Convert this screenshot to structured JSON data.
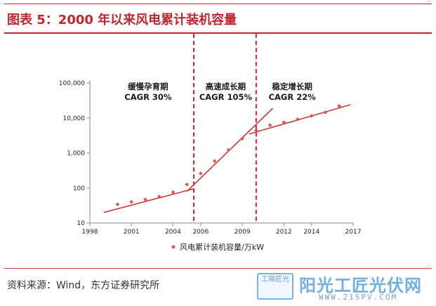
{
  "figure": {
    "title": "图表 5：2000 年以来风电累计装机容量",
    "source": "资料来源：Wind，东方证券研究所"
  },
  "watermark": {
    "seal": "工陽匠光",
    "brand": "阳光工匠光伏网",
    "url": "WWW.21SPV.COM"
  },
  "chart_data": {
    "type": "scatter",
    "title": "",
    "xlabel": "",
    "ylabel": "",
    "yscale": "log",
    "xlim": [
      1998,
      2017
    ],
    "ylim": [
      10,
      100000
    ],
    "x_ticks": [
      "1998",
      "2001",
      "2004",
      "2006",
      "2009",
      "2012",
      "2014",
      "2017"
    ],
    "y_ticks": [
      "10",
      "100",
      "1,000",
      "10,000",
      "100,000"
    ],
    "legend_position": "bottom",
    "grid": false,
    "series": [
      {
        "name": "风电累计装机容量/万kW",
        "color": "#d9534f",
        "points": [
          {
            "x": 2000,
            "y": 34
          },
          {
            "x": 2001,
            "y": 40
          },
          {
            "x": 2002,
            "y": 47
          },
          {
            "x": 2003,
            "y": 57
          },
          {
            "x": 2004,
            "y": 76
          },
          {
            "x": 2005,
            "y": 126
          },
          {
            "x": 2006,
            "y": 260
          },
          {
            "x": 2007,
            "y": 590
          },
          {
            "x": 2008,
            "y": 1220
          },
          {
            "x": 2009,
            "y": 2580
          },
          {
            "x": 2010,
            "y": 4470
          },
          {
            "x": 2011,
            "y": 6240
          },
          {
            "x": 2012,
            "y": 7530
          },
          {
            "x": 2013,
            "y": 9170
          },
          {
            "x": 2014,
            "y": 11460
          },
          {
            "x": 2015,
            "y": 14540
          },
          {
            "x": 2016,
            "y": 22000
          }
        ]
      }
    ],
    "trendlines": [
      {
        "x": [
          1999,
          2005.5
        ],
        "y": [
          20,
          95
        ],
        "color": "#c9302c"
      },
      {
        "x": [
          2005,
          2011.2
        ],
        "y": [
          80,
          19000
        ],
        "color": "#c9302c"
      },
      {
        "x": [
          2009.5,
          2016.8
        ],
        "y": [
          3500,
          24000
        ],
        "color": "#c9302c"
      }
    ],
    "phase_dividers": [
      2005.5,
      2010
    ],
    "phases": [
      {
        "name": "缓慢孕育期",
        "cagr": "CAGR 30%",
        "x_center": 2002.2
      },
      {
        "name": "高速成长期",
        "cagr": "CAGR 105%",
        "x_center": 2007.8
      },
      {
        "name": "稳定增长期",
        "cagr": "CAGR 22%",
        "x_center": 2012.6
      }
    ]
  }
}
